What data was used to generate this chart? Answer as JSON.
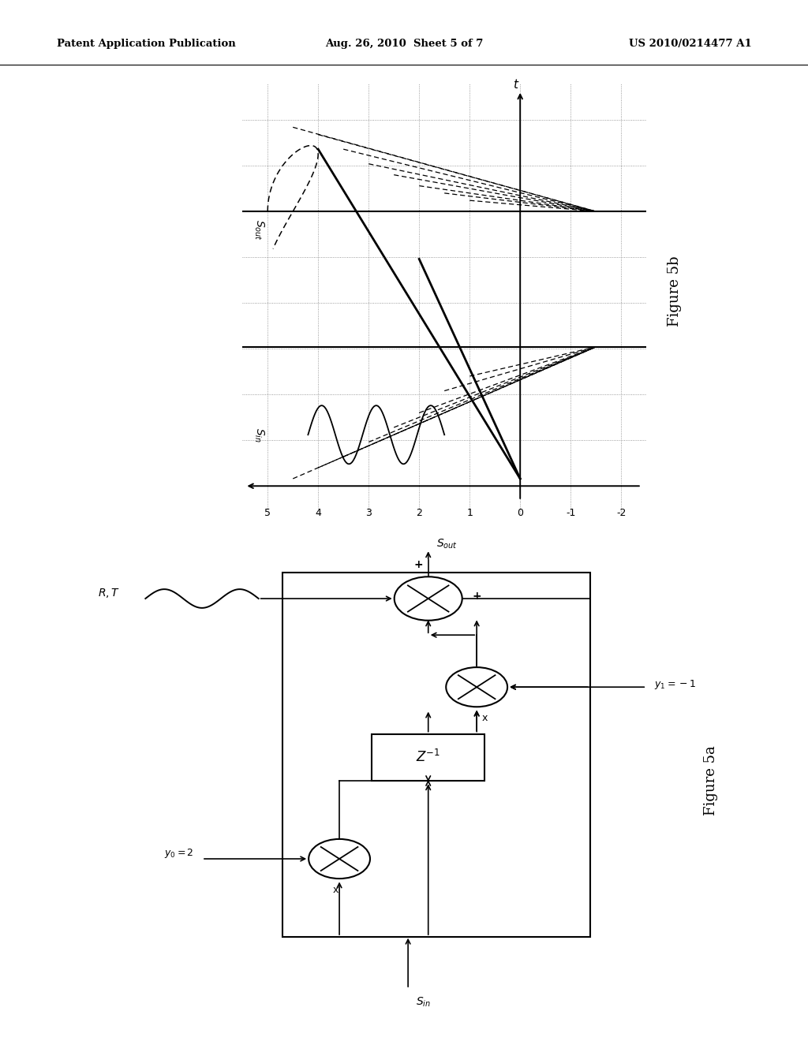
{
  "header_left": "Patent Application Publication",
  "header_center": "Aug. 26, 2010  Sheet 5 of 7",
  "header_right": "US 2010/0214477 A1",
  "fig5b_label": "Figure 5b",
  "fig5a_label": "Figure 5a",
  "background": "#ffffff"
}
